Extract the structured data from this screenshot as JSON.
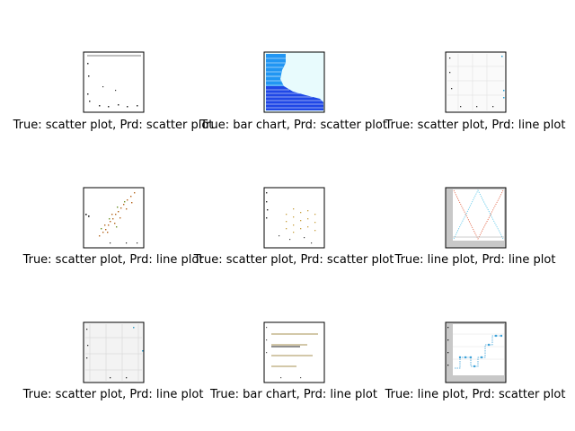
{
  "figure": {
    "panels": [
      {
        "caption": "True: scatter plot, Prd: scatter plot",
        "true_label": "scatter plot",
        "predicted_label": "scatter plot",
        "thumbnail": "scatter-sparse-top-line"
      },
      {
        "caption": "True: bar chart, Prd: scatter plot",
        "true_label": "bar chart",
        "predicted_label": "scatter plot",
        "thumbnail": "blue-horizontal-bars"
      },
      {
        "caption": "True: scatter plot, Prd: line plot",
        "true_label": "scatter plot",
        "predicted_label": "line plot",
        "thumbnail": "gridded-sparse-points"
      },
      {
        "caption": "True: scatter plot, Prd: line plot",
        "true_label": "scatter plot",
        "predicted_label": "line plot",
        "thumbnail": "diagonal-scatter"
      },
      {
        "caption": "True: scatter plot, Prd: scatter plot",
        "true_label": "scatter plot",
        "predicted_label": "scatter plot",
        "thumbnail": "vertical-columns-scatter"
      },
      {
        "caption": "True: line plot, Prd: line plot",
        "true_label": "line plot",
        "predicted_label": "line plot",
        "thumbnail": "crossing-lines-gray"
      },
      {
        "caption": "True: scatter plot, Prd: line plot",
        "true_label": "scatter plot",
        "predicted_label": "line plot",
        "thumbnail": "gray-grid-sparse"
      },
      {
        "caption": "True: bar chart, Prd: line plot",
        "true_label": "bar chart",
        "predicted_label": "line plot",
        "thumbnail": "thin-horizontal-lines"
      },
      {
        "caption": "True: line plot, Prd: scatter plot",
        "true_label": "line plot",
        "predicted_label": "scatter plot",
        "thumbnail": "step-line-markers"
      }
    ]
  }
}
